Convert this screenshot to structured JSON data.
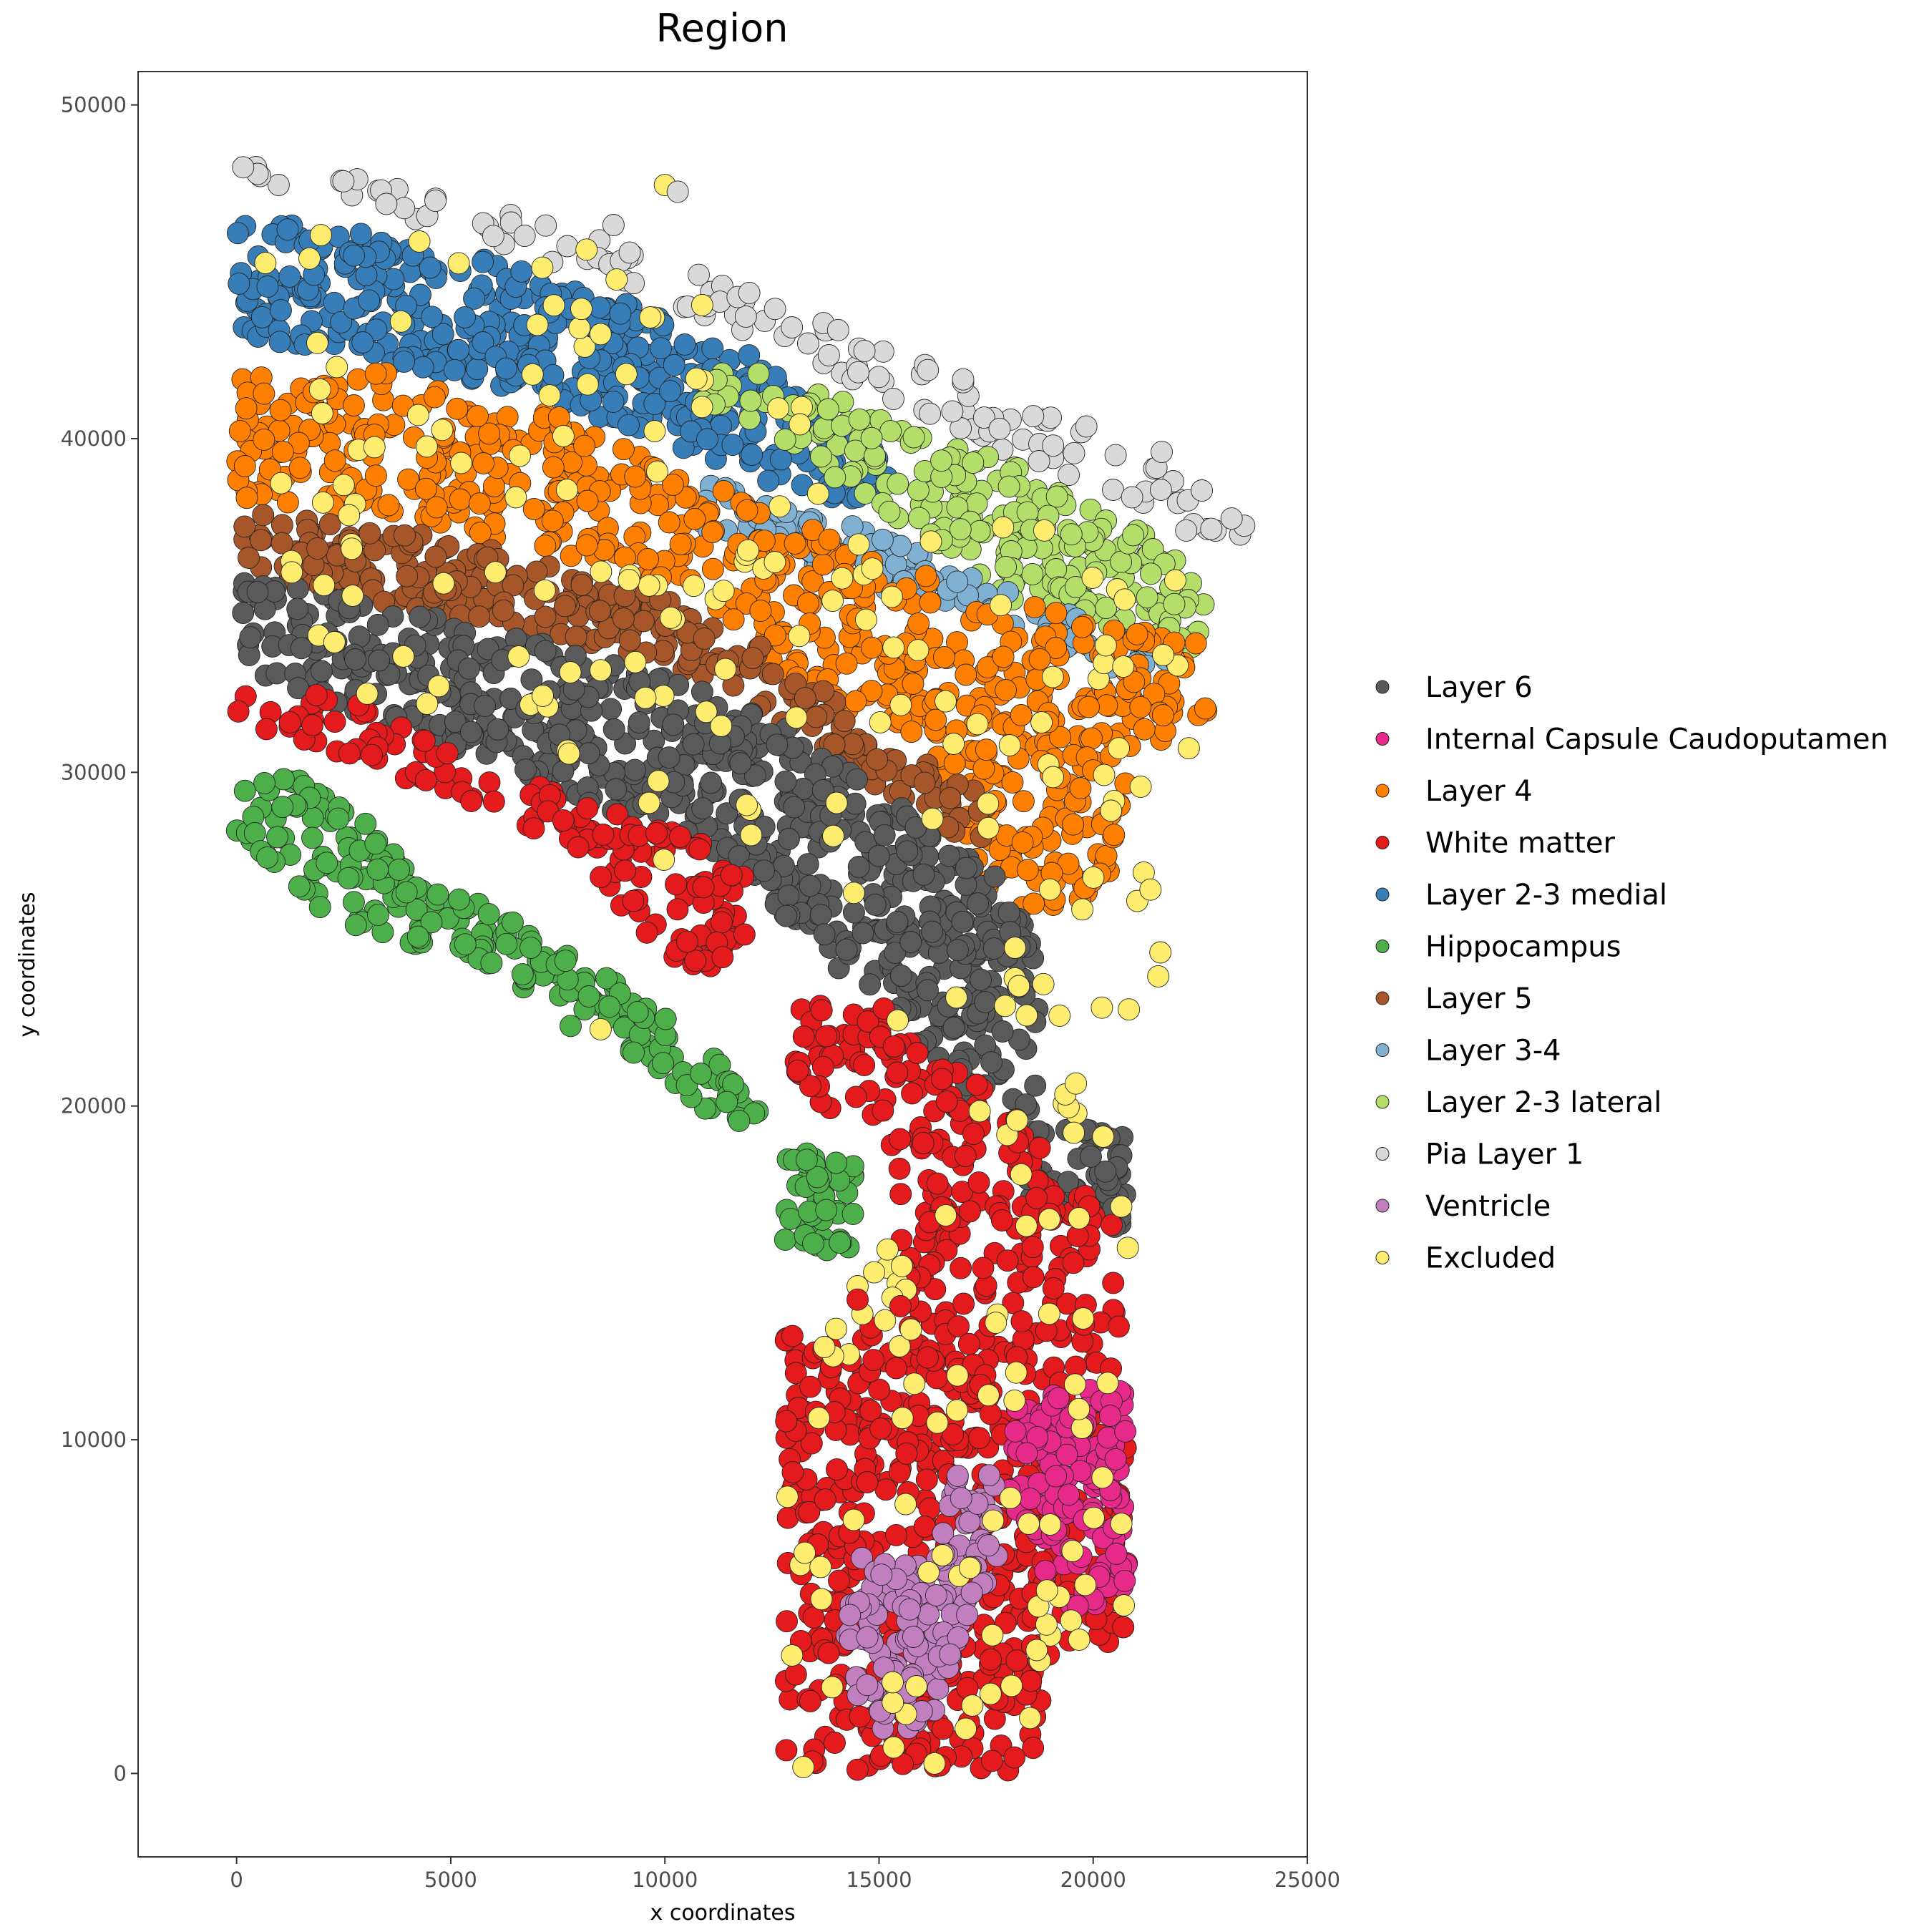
{
  "chart_data": {
    "type": "scatter",
    "title": "Region",
    "xlabel": "x coordinates",
    "ylabel": "y coordinates",
    "xlim": [
      -2300,
      25000
    ],
    "ylim": [
      -2500,
      51000
    ],
    "x_ticks": [
      "0",
      "5000",
      "10000",
      "15000",
      "20000",
      "25000"
    ],
    "y_ticks": [
      "0",
      "10000",
      "20000",
      "30000",
      "40000",
      "50000"
    ],
    "grid": false,
    "legend_position": "right",
    "series": [
      {
        "name": "Layer 6",
        "color": "#5a5a5a"
      },
      {
        "name": "Internal Capsule Caudoputamen",
        "color": "#e7298a"
      },
      {
        "name": "Layer 4",
        "color": "#ff7f00"
      },
      {
        "name": "White matter",
        "color": "#e41a1c"
      },
      {
        "name": "Layer 2-3 medial",
        "color": "#377eb8"
      },
      {
        "name": "Hippocampus",
        "color": "#4daf4a"
      },
      {
        "name": "Layer 5",
        "color": "#a65628"
      },
      {
        "name": "Layer 3-4",
        "color": "#80b1d3"
      },
      {
        "name": "Layer 2-3 lateral",
        "color": "#b3de69"
      },
      {
        "name": "Pia Layer 1",
        "color": "#d9d9d9"
      },
      {
        "name": "Ventricle",
        "color": "#c27fbf"
      },
      {
        "name": "Excluded",
        "color": "#ffed6f"
      }
    ],
    "regions": [
      {
        "series": "Pia Layer 1",
        "n": 130,
        "poly": [
          [
            0,
            48300
          ],
          [
            3000,
            47800
          ],
          [
            8000,
            46200
          ],
          [
            13000,
            43900
          ],
          [
            17000,
            41800
          ],
          [
            21000,
            39800
          ],
          [
            24000,
            37200
          ],
          [
            23800,
            36700
          ],
          [
            21000,
            37600
          ],
          [
            17000,
            40100
          ],
          [
            13000,
            42600
          ],
          [
            9000,
            44600
          ],
          [
            5000,
            46200
          ],
          [
            2000,
            47200
          ],
          [
            0,
            47500
          ]
        ]
      },
      {
        "series": "Layer 2-3 medial",
        "n": 420,
        "poly": [
          [
            0,
            46600
          ],
          [
            4000,
            46000
          ],
          [
            8000,
            44600
          ],
          [
            12000,
            42600
          ],
          [
            15000,
            39800
          ],
          [
            15500,
            38400
          ],
          [
            14000,
            38000
          ],
          [
            10000,
            39800
          ],
          [
            7000,
            41300
          ],
          [
            4000,
            42200
          ],
          [
            0,
            43000
          ]
        ]
      },
      {
        "series": "Layer 2-3 lateral",
        "n": 230,
        "poly": [
          [
            10800,
            42300
          ],
          [
            13000,
            42000
          ],
          [
            15500,
            40300
          ],
          [
            18000,
            39300
          ],
          [
            21500,
            37000
          ],
          [
            22800,
            35200
          ],
          [
            22300,
            33700
          ],
          [
            20500,
            34000
          ],
          [
            18000,
            35200
          ],
          [
            15000,
            37900
          ],
          [
            13000,
            39500
          ],
          [
            10800,
            41000
          ]
        ]
      },
      {
        "series": "Layer 3-4",
        "n": 120,
        "poly": [
          [
            10800,
            38700
          ],
          [
            13000,
            38200
          ],
          [
            15500,
            36900
          ],
          [
            18500,
            35300
          ],
          [
            21800,
            33700
          ],
          [
            21800,
            32700
          ],
          [
            20200,
            33200
          ],
          [
            17500,
            34700
          ],
          [
            15000,
            35400
          ],
          [
            12000,
            37000
          ],
          [
            10800,
            37300
          ]
        ]
      },
      {
        "series": "Layer 4",
        "n": 620,
        "poly": [
          [
            0,
            42300
          ],
          [
            3500,
            42000
          ],
          [
            7000,
            41000
          ],
          [
            10000,
            39500
          ],
          [
            12000,
            38000
          ],
          [
            15000,
            36500
          ],
          [
            18500,
            35000
          ],
          [
            22700,
            33800
          ],
          [
            22700,
            31800
          ],
          [
            21000,
            30500
          ],
          [
            20500,
            27000
          ],
          [
            19000,
            25500
          ],
          [
            17500,
            26300
          ],
          [
            16000,
            31000
          ],
          [
            13000,
            32500
          ],
          [
            11000,
            35200
          ],
          [
            8000,
            36400
          ],
          [
            4000,
            37700
          ],
          [
            0,
            38200
          ]
        ]
      },
      {
        "series": "Layer 5",
        "n": 280,
        "poly": [
          [
            0,
            38100
          ],
          [
            4000,
            37200
          ],
          [
            8000,
            36100
          ],
          [
            11000,
            34800
          ],
          [
            13500,
            33000
          ],
          [
            15500,
            30800
          ],
          [
            17500,
            29500
          ],
          [
            17700,
            27200
          ],
          [
            16000,
            28700
          ],
          [
            13500,
            30800
          ],
          [
            11500,
            32500
          ],
          [
            9000,
            33600
          ],
          [
            6000,
            34500
          ],
          [
            3000,
            35200
          ],
          [
            0,
            35800
          ]
        ]
      },
      {
        "series": "Layer 6",
        "n": 650,
        "poly": [
          [
            0,
            35800
          ],
          [
            3000,
            35200
          ],
          [
            6000,
            34300
          ],
          [
            9000,
            33300
          ],
          [
            11800,
            32200
          ],
          [
            13800,
            30500
          ],
          [
            15700,
            28800
          ],
          [
            17700,
            27000
          ],
          [
            18700,
            25000
          ],
          [
            18700,
            19700
          ],
          [
            16800,
            19500
          ],
          [
            15700,
            22300
          ],
          [
            14000,
            24200
          ],
          [
            12300,
            26300
          ],
          [
            10500,
            28200
          ],
          [
            8500,
            28800
          ],
          [
            6000,
            30200
          ],
          [
            3000,
            31500
          ],
          [
            0,
            33200
          ]
        ]
      },
      {
        "series": "Layer 6",
        "n": 55,
        "poly": [
          [
            18400,
            19300
          ],
          [
            20800,
            19300
          ],
          [
            20800,
            16300
          ],
          [
            18400,
            16800
          ]
        ]
      },
      {
        "series": "White matter",
        "n": 150,
        "poly": [
          [
            0,
            32300
          ],
          [
            2200,
            32400
          ],
          [
            5000,
            30800
          ],
          [
            8000,
            29300
          ],
          [
            10500,
            28200
          ],
          [
            12500,
            26400
          ],
          [
            11500,
            23800
          ],
          [
            10000,
            24200
          ],
          [
            8000,
            27500
          ],
          [
            5000,
            29400
          ],
          [
            2500,
            30400
          ],
          [
            0,
            31300
          ]
        ]
      },
      {
        "series": "White matter",
        "n": 750,
        "poly": [
          [
            12800,
            23000
          ],
          [
            14500,
            24000
          ],
          [
            16200,
            21500
          ],
          [
            17800,
            20500
          ],
          [
            18800,
            18700
          ],
          [
            20800,
            16000
          ],
          [
            20800,
            10500
          ],
          [
            20800,
            4000
          ],
          [
            19000,
            3500
          ],
          [
            18500,
            0
          ],
          [
            12800,
            0
          ],
          [
            12800,
            13300
          ],
          [
            14500,
            13300
          ],
          [
            15500,
            14200
          ],
          [
            15500,
            17500
          ],
          [
            14500,
            19500
          ],
          [
            13500,
            20000
          ],
          [
            12800,
            21500
          ]
        ]
      },
      {
        "series": "Hippocampus",
        "n": 210,
        "poly": [
          [
            0,
            30000
          ],
          [
            1500,
            29800
          ],
          [
            3000,
            28500
          ],
          [
            5000,
            26500
          ],
          [
            8000,
            24500
          ],
          [
            10500,
            22200
          ],
          [
            12500,
            20000
          ],
          [
            12200,
            19400
          ],
          [
            11000,
            19700
          ],
          [
            9200,
            21600
          ],
          [
            8000,
            23000
          ],
          [
            5500,
            24000
          ],
          [
            2000,
            25800
          ],
          [
            0,
            28000
          ]
        ]
      },
      {
        "series": "Hippocampus",
        "n": 50,
        "poly": [
          [
            12800,
            18800
          ],
          [
            14400,
            18200
          ],
          [
            14400,
            15600
          ],
          [
            12800,
            15600
          ]
        ]
      },
      {
        "series": "Internal Capsule Caudoputamen",
        "n": 150,
        "poly": [
          [
            18200,
            11200
          ],
          [
            20800,
            11700
          ],
          [
            20800,
            5200
          ],
          [
            19500,
            4700
          ],
          [
            18000,
            8000
          ]
        ]
      },
      {
        "series": "Ventricle",
        "n": 150,
        "poly": [
          [
            14500,
            6500
          ],
          [
            16200,
            6200
          ],
          [
            16800,
            9000
          ],
          [
            18000,
            9300
          ],
          [
            17800,
            6500
          ],
          [
            16600,
            3000
          ],
          [
            16200,
            1300
          ],
          [
            14700,
            1200
          ],
          [
            14200,
            4000
          ]
        ]
      },
      {
        "series": "Excluded",
        "n": 260,
        "poly": [
          [
            0,
            48000
          ],
          [
            5000,
            46800
          ],
          [
            10000,
            45200
          ],
          [
            14000,
            40000
          ],
          [
            18000,
            38000
          ],
          [
            22700,
            35500
          ],
          [
            22700,
            31500
          ],
          [
            21000,
            20000
          ],
          [
            20800,
            14500
          ],
          [
            20800,
            4500
          ],
          [
            18500,
            0
          ],
          [
            12800,
            0
          ],
          [
            12800,
            12000
          ],
          [
            14500,
            14800
          ],
          [
            16500,
            20000
          ],
          [
            14500,
            24000
          ],
          [
            11500,
            26000
          ],
          [
            8000,
            28500
          ],
          [
            3000,
            31500
          ],
          [
            0,
            38500
          ]
        ]
      }
    ],
    "extra_points": [
      {
        "series": "Excluded",
        "x": 10000,
        "y": 47600
      },
      {
        "series": "Excluded",
        "x": 14500,
        "y": 14600
      },
      {
        "series": "Excluded",
        "x": 15200,
        "y": 15700
      },
      {
        "series": "Excluded",
        "x": 8500,
        "y": 22300
      },
      {
        "series": "Pia Layer 1",
        "x": 10300,
        "y": 47400
      },
      {
        "series": "Pia Layer 1",
        "x": 8800,
        "y": 46400
      },
      {
        "series": "Pia Layer 1",
        "x": 21600,
        "y": 39600
      },
      {
        "series": "Hippocampus",
        "x": 7800,
        "y": 22400
      },
      {
        "series": "Hippocampus",
        "x": 14000,
        "y": 18300
      },
      {
        "series": "White matter",
        "x": 14500,
        "y": 14200
      },
      {
        "series": "White matter",
        "x": 15500,
        "y": 14000
      }
    ]
  }
}
